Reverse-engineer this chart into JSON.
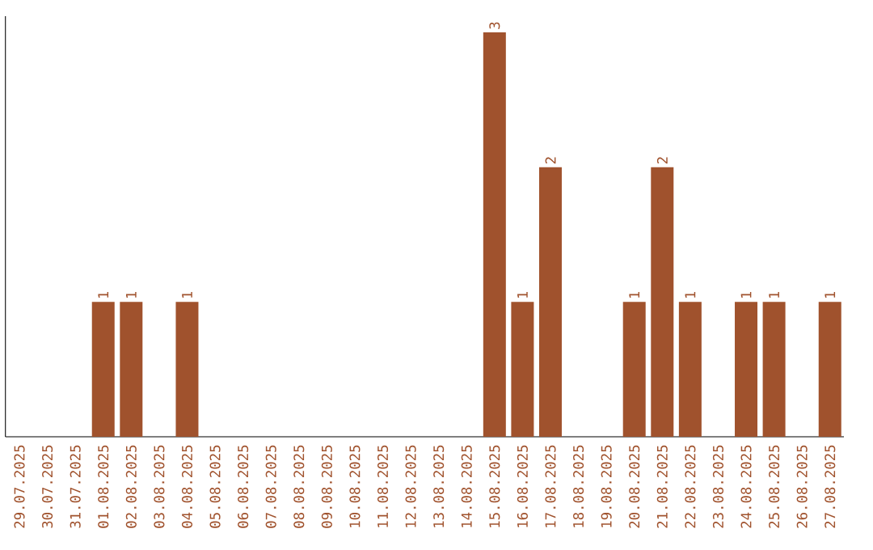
{
  "chart_data": {
    "type": "bar",
    "categories": [
      "29.07.2025",
      "30.07.2025",
      "31.07.2025",
      "01.08.2025",
      "02.08.2025",
      "03.08.2025",
      "04.08.2025",
      "05.08.2025",
      "06.08.2025",
      "07.08.2025",
      "08.08.2025",
      "09.08.2025",
      "10.08.2025",
      "11.08.2025",
      "12.08.2025",
      "13.08.2025",
      "14.08.2025",
      "15.08.2025",
      "16.08.2025",
      "17.08.2025",
      "18.08.2025",
      "19.08.2025",
      "20.08.2025",
      "21.08.2025",
      "22.08.2025",
      "23.08.2025",
      "24.08.2025",
      "25.08.2025",
      "26.08.2025",
      "27.08.2025"
    ],
    "values": [
      0,
      0,
      0,
      1,
      1,
      0,
      1,
      0,
      0,
      0,
      0,
      0,
      0,
      0,
      0,
      0,
      0,
      3,
      1,
      2,
      0,
      0,
      1,
      2,
      1,
      0,
      1,
      1,
      0,
      1
    ],
    "value_labels": [
      null,
      null,
      null,
      "1",
      "1",
      null,
      "1",
      null,
      null,
      null,
      null,
      null,
      null,
      null,
      null,
      null,
      null,
      "3",
      "1",
      "2",
      null,
      null,
      "1",
      "2",
      "1",
      null,
      "1",
      "1",
      null,
      "1"
    ],
    "color": "#a0522d"
  }
}
